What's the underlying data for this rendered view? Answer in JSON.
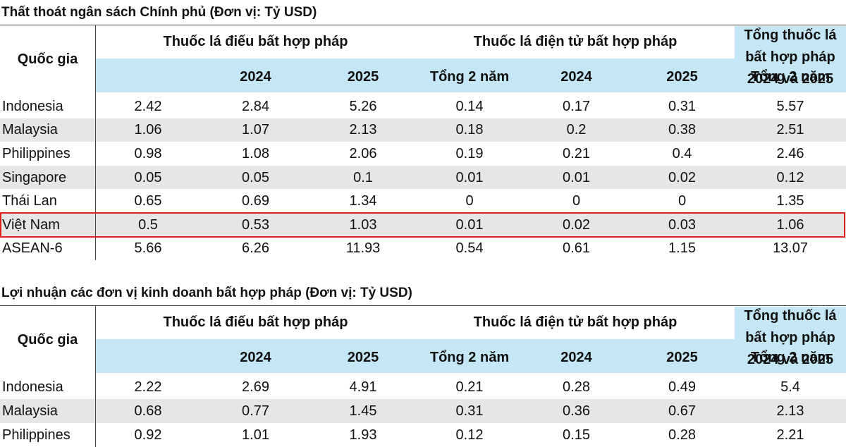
{
  "tables": [
    {
      "title": "Thất thoát ngân sách Chính phủ (Đơn vị: Tỷ USD)",
      "header": {
        "country": "Quốc gia",
        "group1": "Thuốc lá điếu bất hợp pháp",
        "group2": "Thuốc lá điện tử bất hợp pháp",
        "total": [
          "Tổng thuốc lá",
          "bất hợp pháp",
          "2024 và 2025"
        ],
        "sub": [
          "2024",
          "2025",
          "Tổng 2 năm",
          "2024",
          "2025",
          "Tổng 2 năm"
        ]
      },
      "rows": [
        [
          "Indonesia",
          2.42,
          2.84,
          5.26,
          0.14,
          0.17,
          0.31,
          5.57
        ],
        [
          "Malaysia",
          1.06,
          1.07,
          2.13,
          0.18,
          0.2,
          0.38,
          2.51
        ],
        [
          "Philippines",
          0.98,
          1.08,
          2.06,
          0.19,
          0.21,
          0.4,
          2.46
        ],
        [
          "Singapore",
          0.05,
          0.05,
          0.1,
          0.01,
          0.01,
          0.02,
          0.12
        ],
        [
          "Thái Lan",
          0.65,
          0.69,
          1.34,
          0,
          0,
          0,
          1.35
        ],
        [
          "Việt Nam",
          0.5,
          0.53,
          1.03,
          0.01,
          0.02,
          0.03,
          1.06
        ],
        [
          "ASEAN-6",
          5.66,
          6.26,
          11.93,
          0.54,
          0.61,
          1.15,
          13.07
        ]
      ]
    },
    {
      "title": "Lợi nhuận các đơn vị kinh doanh bất hợp pháp (Đơn vị: Tỷ USD)",
      "header": {
        "country": "Quốc gia",
        "group1": "Thuốc lá điếu bất hợp pháp",
        "group2": "Thuốc lá điện tử bất hợp pháp",
        "total": [
          "Tổng thuốc lá",
          "bất hợp pháp",
          "2024 và 2025"
        ],
        "sub": [
          "2024",
          "2025",
          "Tổng 2 năm",
          "2024",
          "2025",
          "Tổng 2 năm"
        ]
      },
      "rows": [
        [
          "Indonesia",
          2.22,
          2.69,
          4.91,
          0.21,
          0.28,
          0.49,
          5.4
        ],
        [
          "Malaysia",
          0.68,
          0.77,
          1.45,
          0.31,
          0.36,
          0.67,
          2.13
        ],
        [
          "Philippines",
          0.92,
          1.01,
          1.93,
          0.12,
          0.15,
          0.28,
          2.21
        ]
      ]
    }
  ]
}
